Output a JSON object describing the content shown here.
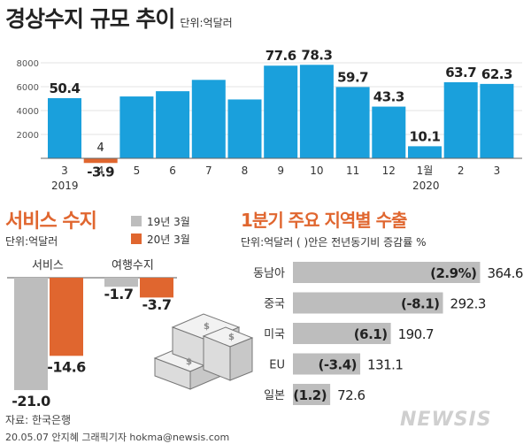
{
  "main_chart": {
    "title": "경상수지 규모 추이",
    "unit": "단위:억달러",
    "year_labels": [
      "2019",
      "2020"
    ],
    "colors": {
      "positive": "#1aa0dc",
      "negative": "#e0662f"
    }
  },
  "services_chart": {
    "title": "서비스 수지",
    "unit": "단위:억달러",
    "legend": [
      {
        "label": "19년 3월",
        "color": "#bdbdbd"
      },
      {
        "label": "20년 3월",
        "color": "#e0662f"
      }
    ],
    "categories": [
      "서비스",
      "여행수지"
    ]
  },
  "regions_chart": {
    "title": "1분기 주요 지역별 수출",
    "unit": "단위:억달러 ( )안은 전년동기비 증감률 %"
  },
  "chart_data": [
    {
      "type": "bar",
      "title": "경상수지 규모 추이",
      "unit": "억달러",
      "categories": [
        "3",
        "4",
        "5",
        "6",
        "7",
        "8",
        "9",
        "10",
        "11",
        "12",
        "1월",
        "2",
        "3"
      ],
      "values": [
        50.4,
        -3.9,
        51.8,
        56.2,
        65.7,
        49.3,
        77.6,
        78.3,
        59.7,
        43.3,
        10.1,
        63.7,
        62.3
      ],
      "value_labels": [
        "50.4",
        "-3.9",
        "",
        "",
        "",
        "",
        "77.6",
        "78.3",
        "59.7",
        "43.3",
        "10.1",
        "63.7",
        "62.3"
      ],
      "extra_label": "4",
      "yticks": [
        "2000",
        "4000",
        "6000",
        "8000"
      ],
      "ylim": [
        -500,
        8400
      ]
    },
    {
      "type": "bar",
      "title": "서비스 수지",
      "unit": "억달러",
      "categories": [
        "서비스",
        "여행수지"
      ],
      "series": [
        {
          "name": "19년 3월",
          "values": [
            -21.0,
            -1.7
          ]
        },
        {
          "name": "20년 3월",
          "values": [
            -14.6,
            -3.7
          ]
        }
      ],
      "value_labels": [
        [
          "-21.0",
          "-1.7"
        ],
        [
          "-14.6",
          "-3.7"
        ]
      ]
    },
    {
      "type": "bar",
      "orientation": "horizontal",
      "title": "1분기 주요 지역별 수출",
      "unit": "억달러",
      "categories": [
        "동남아",
        "중국",
        "미국",
        "EU",
        "일본"
      ],
      "values": [
        364.6,
        292.3,
        190.7,
        131.1,
        72.6
      ],
      "value_labels": [
        "364.6",
        "292.3",
        "190.7",
        "131.1",
        "72.6"
      ],
      "change_labels": [
        "(2.9%)",
        "(-8.1)",
        "(6.1)",
        "(-3.4)",
        "(1.2)"
      ]
    }
  ],
  "footer": {
    "source": "자료: 한국은행",
    "credit": "20.05.07 안지혜 그래픽기자 hokma@newsis.com",
    "brand": "NEWSIS"
  }
}
